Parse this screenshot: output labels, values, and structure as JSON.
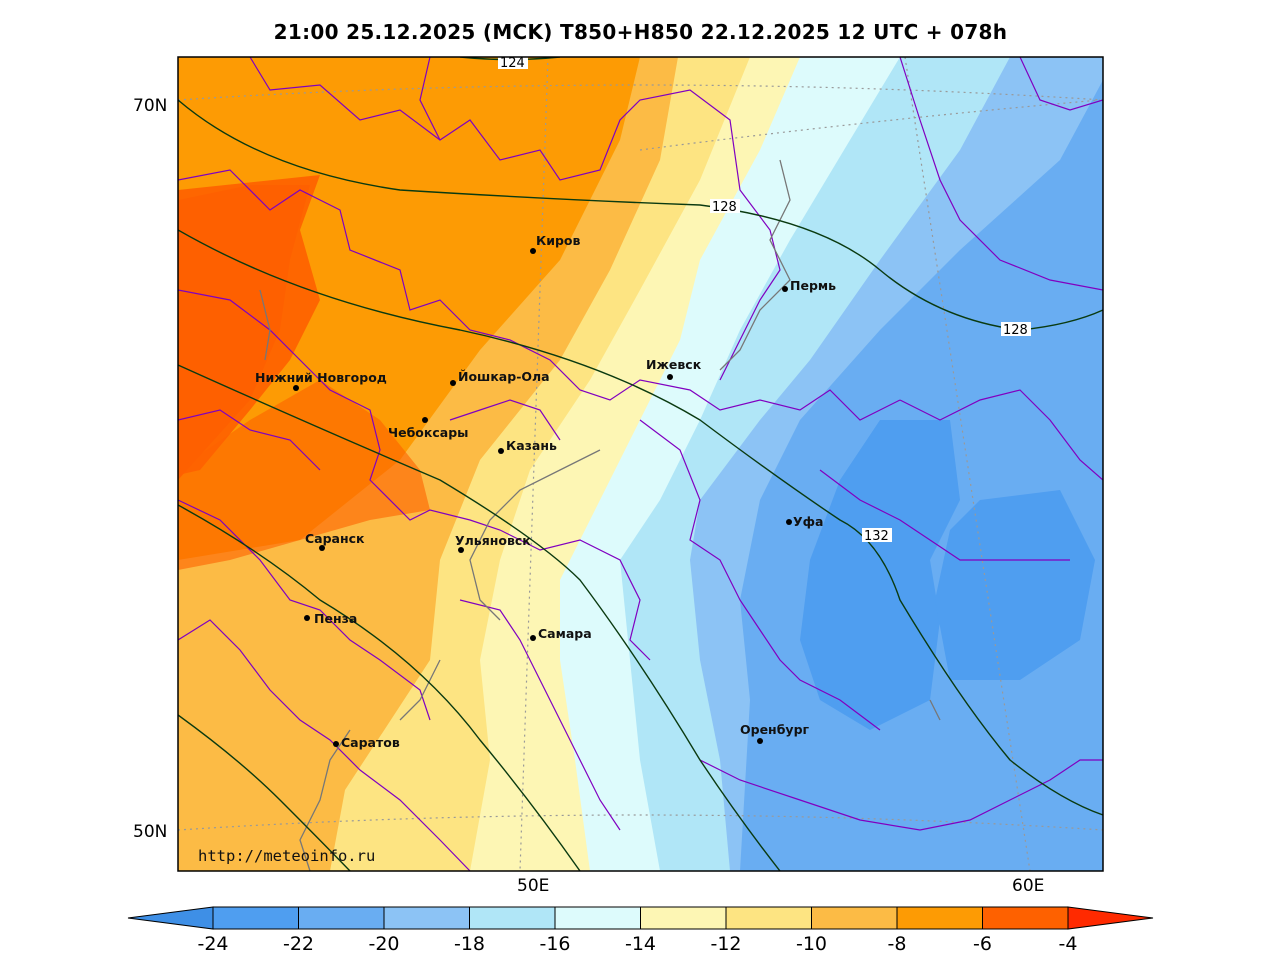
{
  "title": "21:00 25.12.2025 (MCK) T850+H850 22.12.2025 12 UTC + 078h",
  "axes": {
    "lat_labels": [
      "70N",
      "50N"
    ],
    "lon_labels": [
      "50E",
      "60E"
    ]
  },
  "watermark": "http://meteoinfo.ru",
  "cities": [
    {
      "name": "Киров"
    },
    {
      "name": "Пермь"
    },
    {
      "name": "Нижний Новгород"
    },
    {
      "name": "Йошкар-Ола"
    },
    {
      "name": "Ижевск"
    },
    {
      "name": "Чебоксары"
    },
    {
      "name": "Казань"
    },
    {
      "name": "Уфа"
    },
    {
      "name": "Саранск"
    },
    {
      "name": "Ульяновск"
    },
    {
      "name": "Пенза"
    },
    {
      "name": "Самара"
    },
    {
      "name": "Оренбург"
    },
    {
      "name": "Саратов"
    }
  ],
  "contour_labels": [
    "124",
    "128",
    "128",
    "132"
  ],
  "colorbar": {
    "ticks": [
      "-24",
      "-22",
      "-20",
      "-18",
      "-16",
      "-14",
      "-12",
      "-10",
      "-8",
      "-6",
      "-4"
    ],
    "colors": [
      "#4f9ef0",
      "#69adf2",
      "#8cc3f5",
      "#b0e6f7",
      "#ddfbfc",
      "#fdf6b4",
      "#fde482",
      "#fcbb45",
      "#fd9b04",
      "#fe6100",
      "#ff2a00"
    ],
    "under_color": "#3e8fe6",
    "over_color": "#ff2a00"
  }
}
